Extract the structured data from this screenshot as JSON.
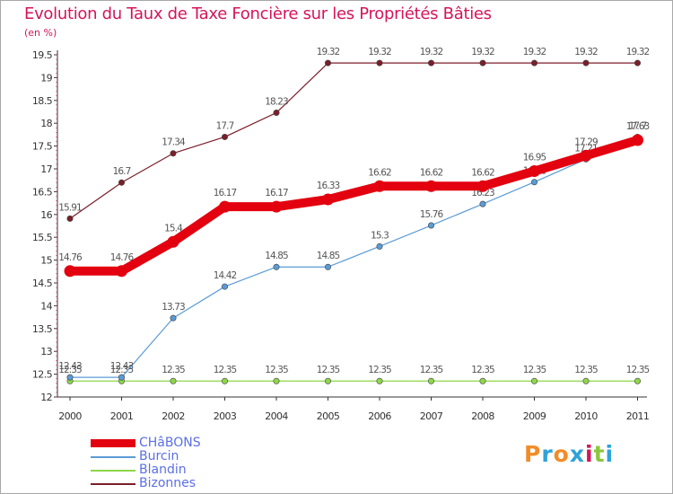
{
  "title": "Evolution du Taux de Taxe Foncière sur les Propriétés Bâties",
  "subtitle": "(en %)",
  "logo_text": "Proxiti",
  "logo_colors": [
    "#f28c28",
    "#2ea3d9",
    "#f28c28",
    "#2ea3d9",
    "#d4145a",
    "#8cc63f",
    "#2ea3d9"
  ],
  "chart_data": {
    "type": "line",
    "x": [
      "2000",
      "2001",
      "2002",
      "2003",
      "2004",
      "2005",
      "2006",
      "2007",
      "2008",
      "2009",
      "2010",
      "2011"
    ],
    "ylim": [
      12,
      19.5
    ],
    "yticks": [
      "12",
      "12.5",
      "13",
      "13.5",
      "14",
      "14.5",
      "15",
      "15.5",
      "16",
      "16.5",
      "17",
      "17.5",
      "18",
      "18.5",
      "19",
      "19.5"
    ],
    "grid": false,
    "legend_position": "bottom-left",
    "series": [
      {
        "name": "Bizonnes",
        "color": "#7b1e2a",
        "style": "thin",
        "values": [
          15.91,
          16.7,
          17.34,
          17.7,
          18.23,
          19.32,
          19.32,
          19.32,
          19.32,
          19.32,
          19.32,
          19.32
        ],
        "labels": [
          "15.91",
          "16.7",
          "17.34",
          "17.7",
          "18.23",
          "19.32",
          "19.32",
          "19.32",
          "19.32",
          "19.32",
          "19.32",
          "19.32"
        ]
      },
      {
        "name": "Blandin",
        "color": "#8ed64a",
        "style": "thin",
        "values": [
          12.35,
          12.35,
          12.35,
          12.35,
          12.35,
          12.35,
          12.35,
          12.35,
          12.35,
          12.35,
          12.35,
          12.35
        ],
        "labels": [
          "12.35",
          "12.35",
          "12.35",
          "12.35",
          "12.35",
          "12.35",
          "12.35",
          "12.35",
          "12.35",
          "12.35",
          "12.35",
          "12.35"
        ]
      },
      {
        "name": "Burcin",
        "color": "#5b9bd5",
        "style": "thin",
        "values": [
          12.43,
          12.43,
          13.73,
          14.42,
          14.85,
          14.85,
          15.3,
          15.76,
          16.23,
          16.71,
          17.21,
          17.7
        ],
        "labels": [
          "12.43",
          "12.43",
          "13.73",
          "14.42",
          "14.85",
          "14.85",
          "15.3",
          "15.76",
          "16.23",
          "16.71",
          "17.21",
          "17.7"
        ]
      },
      {
        "name": "CHâBONS",
        "color": "#e3000f",
        "style": "thick",
        "values": [
          14.76,
          14.76,
          15.4,
          16.17,
          16.17,
          16.33,
          16.62,
          16.62,
          16.62,
          16.95,
          17.29,
          17.63
        ],
        "labels": [
          "14.76",
          "14.76",
          "15.4",
          "16.17",
          "16.17",
          "16.33",
          "16.62",
          "16.62",
          "16.62",
          "16.95",
          "17.29",
          "17.63"
        ]
      }
    ]
  },
  "legend": [
    {
      "name": "CHâBONS",
      "color": "#e3000f",
      "thick": true
    },
    {
      "name": "Burcin",
      "color": "#5b9bd5",
      "thick": false
    },
    {
      "name": "Blandin",
      "color": "#8ed64a",
      "thick": false
    },
    {
      "name": "Bizonnes",
      "color": "#7b1e2a",
      "thick": false
    }
  ]
}
